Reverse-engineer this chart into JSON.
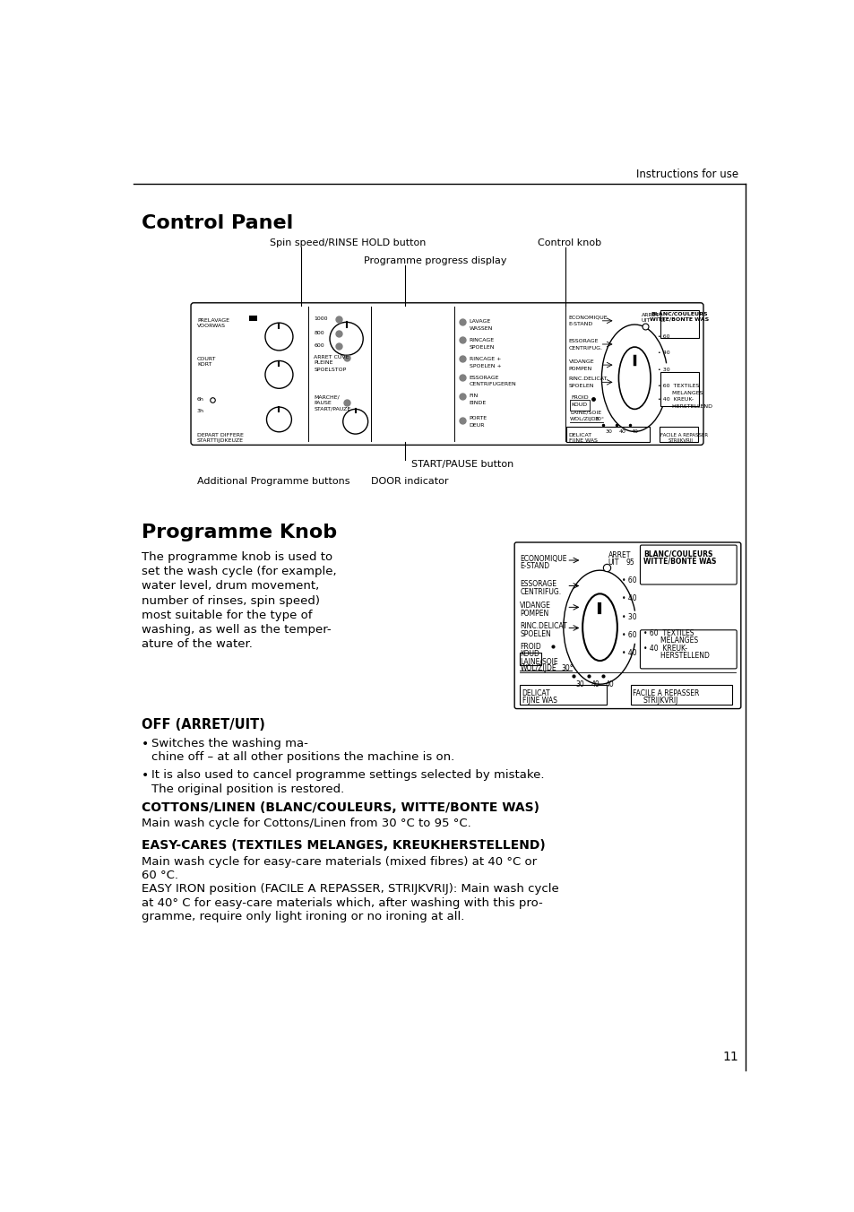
{
  "page_bg": "#ffffff",
  "text_color": "#000000",
  "header_text": "Instructions for use",
  "section1_title": "Control Panel",
  "section2_title": "Programme Knob",
  "label_spin": "Spin speed/RINSE HOLD button",
  "label_control": "Control knob",
  "label_progress": "Programme progress display",
  "label_start": "START/PAUSE button",
  "label_additional": "Additional Programme buttons",
  "label_door": "DOOR indicator",
  "body_text_lines": [
    "The programme knob is used to",
    "set the wash cycle (for example,",
    "water level, drum movement,",
    "number of rinses, spin speed)",
    "most suitable for the type of",
    "washing, as well as the temper-",
    "ature of the water."
  ],
  "off_title": "OFF (ARRET/UIT)",
  "off_b1_line1": "Switches the washing ma-",
  "off_b1_line2": "chine off – at all other positions the machine is on.",
  "off_b2_line1": "It is also used to cancel programme settings selected by mistake.",
  "off_b2_line2": "The original position is restored.",
  "cottons_title": "COTTONS/LINEN (BLANC/COULEURS, WITTE/BONTE WAS)",
  "cottons_body": "Main wash cycle for Cottons/Linen from 30 °C to 95 °C.",
  "easycares_title": "EASY-CARES (TEXTILES MELANGES, KREUKHERSTELLEND)",
  "easycares_lines": [
    "Main wash cycle for easy-care materials (mixed fibres) at 40 °C or",
    "60 °C.",
    "EASY IRON position (FACILE A REPASSER, STRIJKVRIJ): Main wash cycle",
    "at 40° C for easy-care materials which, after washing with this pro-",
    "gramme, require only light ironing or no ironing at all."
  ],
  "page_number": "11"
}
